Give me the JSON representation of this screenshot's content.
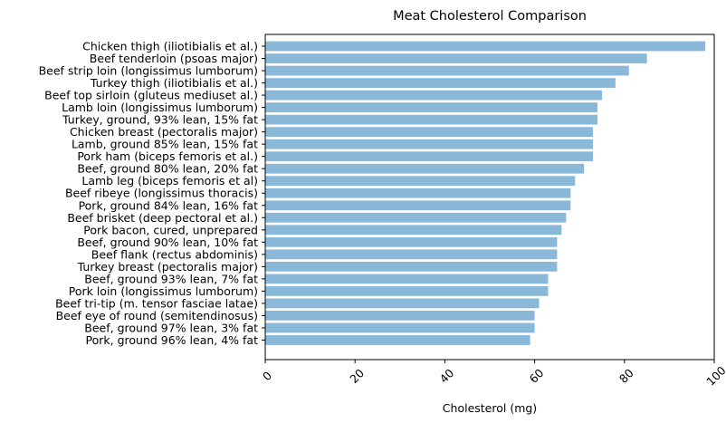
{
  "chart_data": {
    "type": "bar",
    "orientation": "horizontal",
    "title": "Meat Cholesterol Comparison",
    "xlabel": "Cholesterol (mg)",
    "ylabel": "",
    "xlim": [
      0,
      100
    ],
    "x_ticks": [
      0,
      20,
      40,
      60,
      80,
      100
    ],
    "x_tick_rotation": 45,
    "grid": false,
    "bar_color": "#8ab8d9",
    "categories": [
      "Chicken thigh (iliotibialis et al.)",
      "Beef tenderloin (psoas major)",
      "Beef strip loin (longissimus lumborum)",
      "Turkey thigh (iliotibialis et al.)",
      "Beef top sirloin (gluteus mediuset al.)",
      "Lamb loin (longissimus lumborum)",
      "Turkey, ground, 93% lean, 15% fat",
      "Chicken breast (pectoralis major)",
      "Lamb, ground 85% lean, 15% fat",
      "Pork ham (biceps femoris et al.)",
      "Beef, ground 80% lean, 20% fat",
      "Lamb leg (biceps femoris et al)",
      "Beef ribeye (longissimus thoracis)",
      "Pork, ground 84% lean, 16% fat",
      "Beef brisket (deep pectoral et al.)",
      "Pork bacon, cured, unprepared",
      "Beef, ground 90% lean, 10% fat",
      "Beef flank (rectus abdominis)",
      "Turkey breast (pectoralis major)",
      "Beef, ground 93% lean, 7% fat",
      "Pork loin (longissimus lumborum)",
      "Beef tri-tip (m. tensor fasciae latae)",
      "Beef eye of round (semitendinosus)",
      "Beef, ground 97% lean, 3% fat",
      "Pork, ground 96% lean, 4% fat"
    ],
    "values": [
      98,
      85,
      81,
      78,
      75,
      74,
      74,
      73,
      73,
      73,
      71,
      69,
      68,
      68,
      67,
      66,
      65,
      65,
      65,
      63,
      63,
      61,
      60,
      60,
      59
    ]
  }
}
